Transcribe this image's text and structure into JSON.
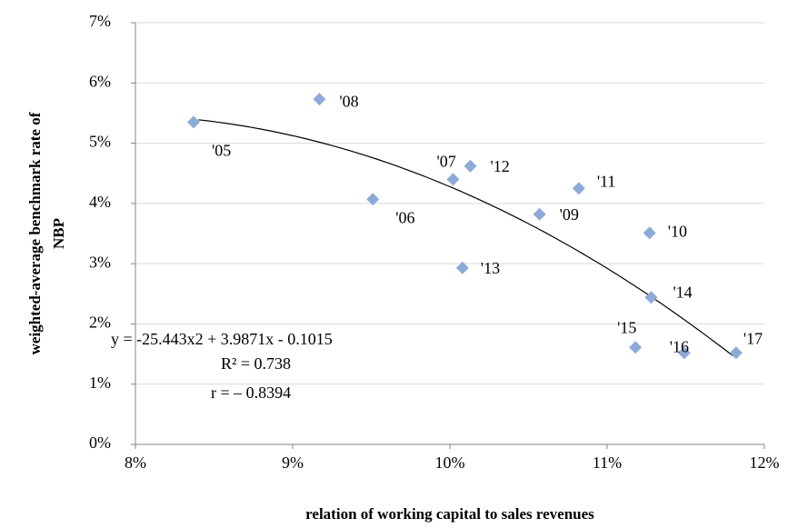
{
  "chart_data": {
    "type": "scatter",
    "xlabel": "relation of working capital to sales revenues",
    "ylabel": [
      "weighted-average benchmark rate of",
      "NBP"
    ],
    "xlim": [
      8,
      12
    ],
    "xticks": [
      {
        "value": 8,
        "label": "8%"
      },
      {
        "value": 9,
        "label": "9%"
      },
      {
        "value": 10,
        "label": "10%"
      },
      {
        "value": 11,
        "label": "11%"
      },
      {
        "value": 12,
        "label": "12%"
      }
    ],
    "ylim": [
      0,
      7
    ],
    "yticks": [
      {
        "value": 0,
        "label": "0%"
      },
      {
        "value": 1,
        "label": "1%"
      },
      {
        "value": 2,
        "label": "2%"
      },
      {
        "value": 3,
        "label": "3%"
      },
      {
        "value": 4,
        "label": "4%"
      },
      {
        "value": 5,
        "label": "5%"
      },
      {
        "value": 6,
        "label": "6%"
      },
      {
        "value": 7,
        "label": "7%"
      }
    ],
    "grid": true,
    "color": "#8eaad8",
    "point_labels": [
      "'05",
      "'08",
      "'06",
      "'07",
      "'12",
      "'13",
      "'09",
      "'11",
      "'10",
      "'14",
      "'15",
      "'16",
      "'17"
    ],
    "x": [
      8.37,
      9.17,
      9.51,
      10.02,
      10.13,
      10.08,
      10.57,
      10.82,
      11.27,
      11.28,
      11.18,
      11.49,
      11.82
    ],
    "values": [
      5.35,
      5.73,
      4.07,
      4.4,
      4.62,
      2.93,
      3.82,
      4.25,
      3.51,
      2.44,
      1.61,
      1.52,
      1.52
    ],
    "trendline": {
      "coefficients": [
        -25.443,
        3.9871,
        -0.1015
      ],
      "x_range": [
        8.4,
        11.8
      ]
    },
    "annotations": [
      "y = -25.443x2 + 3.9871x - 0.1015",
      "R² = 0.738",
      "r = – 0.8394"
    ]
  }
}
